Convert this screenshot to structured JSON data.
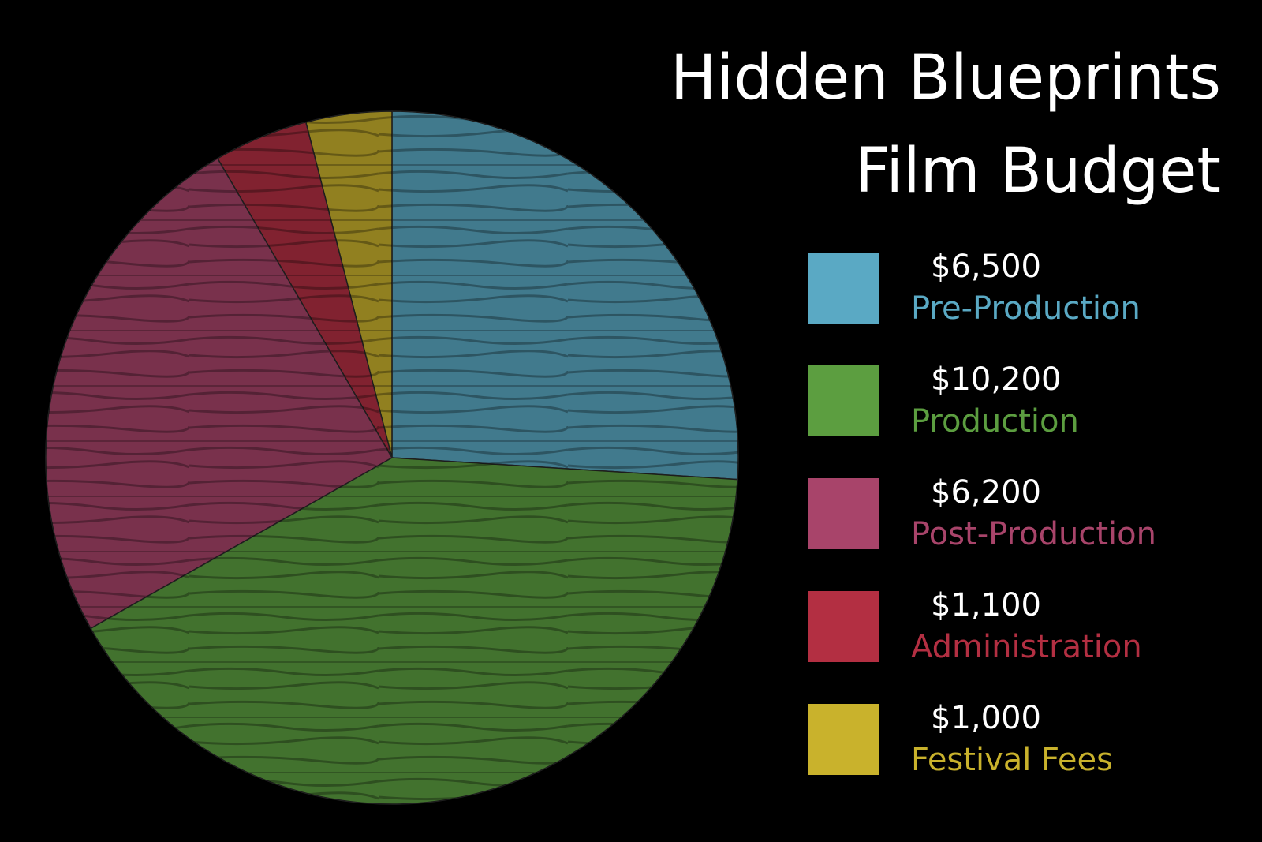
{
  "chart_data": {
    "type": "pie",
    "title": "Hidden Blueprints Film Budget",
    "categories": [
      "Pre-Production",
      "Production",
      "Post-Production",
      "Administration",
      "Festival Fees"
    ],
    "values": [
      6500,
      10200,
      6200,
      1100,
      1000
    ],
    "value_labels": [
      "$6,500",
      "$10,200",
      "$6,200",
      "$1,100",
      "$1,000"
    ],
    "colors": [
      "#5aa9c4",
      "#5c9e40",
      "#a8446a",
      "#b32f42",
      "#c9b22c"
    ]
  }
}
